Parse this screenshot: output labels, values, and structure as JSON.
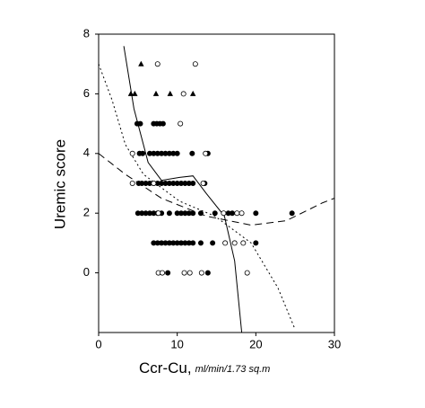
{
  "chart_data": {
    "type": "scatter",
    "ylabel": "Uremic score",
    "xlabel": "Ccr-Cu,",
    "xlabel_units": "ml/min/1.73 sq.m",
    "xlim": [
      0,
      30
    ],
    "ylim": [
      -2,
      8
    ],
    "xticks": [
      0,
      10,
      20,
      30
    ],
    "yticks": [
      0,
      2,
      4,
      6,
      8
    ],
    "series": [
      {
        "marker": "filled-circle",
        "color": "#000000",
        "x": [
          4.9,
          5.3,
          7.0,
          7.4,
          7.8,
          8.2,
          5.2,
          5.6,
          6.5,
          7.0,
          7.5,
          8.0,
          8.5,
          9.0,
          9.5,
          10.0,
          11.9,
          13.9,
          5.1,
          5.5,
          6.0,
          6.5,
          7.0,
          7.5,
          8.0,
          8.5,
          9.0,
          9.5,
          10.0,
          10.5,
          11.0,
          11.5,
          12.0,
          13.5,
          5.0,
          5.5,
          6.0,
          6.5,
          7.0,
          7.5,
          8.0,
          9.0,
          10.0,
          10.5,
          11.0,
          11.5,
          12.0,
          13.0,
          14.8,
          16.5,
          17.0,
          20.0,
          24.6,
          7.0,
          7.5,
          8.0,
          8.5,
          9.0,
          9.5,
          10.0,
          10.5,
          11.0,
          11.5,
          12.0,
          13.0,
          14.5,
          20.0,
          8.8,
          13.9
        ],
        "values": [
          5,
          5,
          5,
          5,
          5,
          5,
          4,
          4,
          4,
          4,
          4,
          4,
          4,
          4,
          4,
          4,
          4,
          4,
          3,
          3,
          3,
          3,
          3,
          3,
          3,
          3,
          3,
          3,
          3,
          3,
          3,
          3,
          3,
          3,
          2,
          2,
          2,
          2,
          2,
          2,
          2,
          2,
          2,
          2,
          2,
          2,
          2,
          2,
          2,
          2,
          2,
          2,
          2,
          1,
          1,
          1,
          1,
          1,
          1,
          1,
          1,
          1,
          1,
          1,
          1,
          1,
          1,
          0,
          0
        ]
      },
      {
        "marker": "open-circle",
        "color": "#000000",
        "x": [
          7.5,
          12.3,
          10.8,
          10.4,
          4.3,
          13.6,
          4.3,
          13.3,
          7.0,
          7.6,
          15.9,
          17.6,
          18.2,
          16.1,
          17.3,
          18.4,
          7.6,
          8.1,
          10.9,
          11.6,
          13.1,
          18.9
        ],
        "values": [
          7,
          7,
          6,
          5,
          4,
          4,
          3,
          3,
          3,
          2,
          2,
          2,
          2,
          1,
          1,
          1,
          0,
          0,
          0,
          0,
          0,
          0
        ]
      },
      {
        "marker": "triangle",
        "color": "#000000",
        "x": [
          5.4,
          4.1,
          4.6,
          7.3,
          9.1,
          12.0
        ],
        "values": [
          7,
          6,
          6,
          6,
          6,
          6
        ]
      }
    ],
    "curves": [
      {
        "type": "line",
        "style": "solid",
        "x": [
          3.2,
          4.5,
          6.3,
          8.0,
          10.3,
          12.0,
          13.7,
          16.0,
          17.3,
          18.2
        ],
        "values": [
          7.6,
          5.5,
          3.7,
          3.1,
          3.2,
          3.25,
          2.66,
          1.9,
          0.4,
          -2.0
        ]
      },
      {
        "type": "line",
        "style": "dotted",
        "x": [
          0,
          1.7,
          3.4,
          5.7,
          10.3,
          14.8,
          19.4,
          22.8,
          25.0
        ],
        "values": [
          7.0,
          5.8,
          4.3,
          3.3,
          2.4,
          1.9,
          1.0,
          -0.5,
          -1.9
        ]
      },
      {
        "type": "line",
        "style": "dashed",
        "x": [
          0,
          3.4,
          8.0,
          13.7,
          19.4,
          23.9,
          28.5,
          30.0
        ],
        "values": [
          4.0,
          3.3,
          2.5,
          1.9,
          1.6,
          1.75,
          2.35,
          2.5
        ]
      }
    ]
  }
}
